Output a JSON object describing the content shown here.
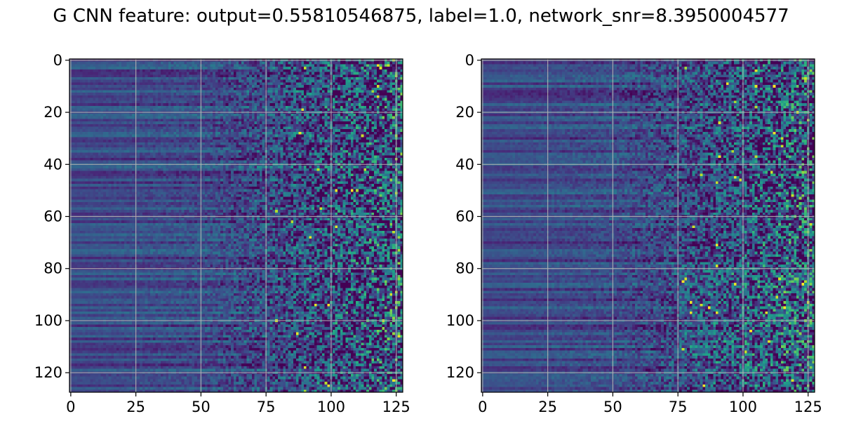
{
  "title": "G CNN feature: output=0.55810546875, label=1.0, network_snr=8.3950004577",
  "chart_data": [
    {
      "type": "heatmap",
      "rows": 128,
      "cols": 128,
      "colormap": "viridis",
      "xlim": [
        0,
        127
      ],
      "ylim": [
        127,
        0
      ],
      "xticks": [
        0,
        25,
        50,
        75,
        100,
        125
      ],
      "yticks": [
        0,
        20,
        40,
        60,
        80,
        100,
        120
      ],
      "grid": true,
      "description": "columns 0-50 near-uniform dark purple with horizontal row banding; noise grows toward the right"
    },
    {
      "type": "heatmap",
      "rows": 128,
      "cols": 128,
      "colormap": "viridis",
      "xlim": [
        0,
        127
      ],
      "ylim": [
        127,
        0
      ],
      "xticks": [
        0,
        25,
        50,
        75,
        100,
        125
      ],
      "yticks": [
        0,
        20,
        40,
        60,
        80,
        100,
        120
      ],
      "grid": true,
      "description": "similar structure; slightly brighter banding in rows 80-120 and scattered yellow pixels at right"
    }
  ]
}
